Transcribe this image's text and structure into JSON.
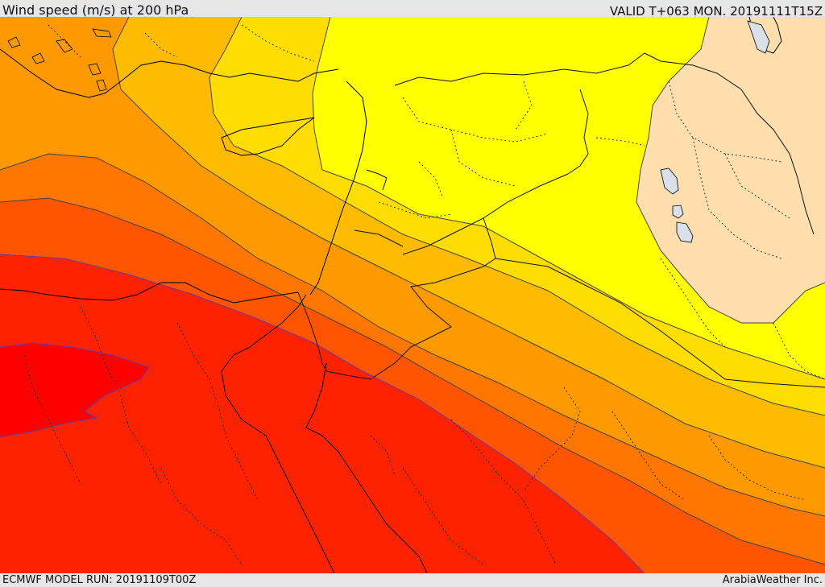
{
  "header": {
    "title": "Wind speed (m/s) at 200 hPa",
    "valid": "VALID T+063 MON. 20191111T15Z"
  },
  "footer": {
    "model_run": "ECMWF MODEL RUN: 20191109T00Z",
    "credit": "ArabiaWeather Inc."
  },
  "colors": {
    "level_below_yellow": "#ffdead",
    "level_1": "#ffff00",
    "level_2": "#ffdd00",
    "level_3": "#ffbb00",
    "level_4": "#ff9900",
    "level_5": "#ff7700",
    "level_6": "#ff5500",
    "level_7": "#ff2200",
    "level_8": "#ff0000",
    "contour_line": "#444444",
    "coast_line": "#000000",
    "lake_fill": "#d9e0ea"
  }
}
